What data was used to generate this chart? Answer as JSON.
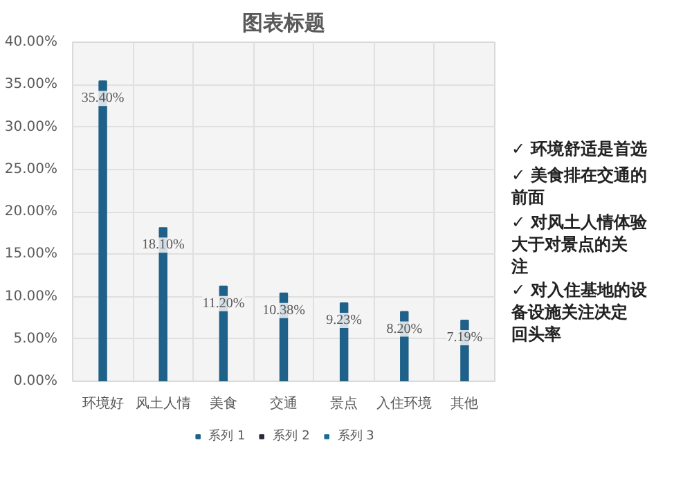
{
  "chart_data": {
    "type": "bar",
    "title": "图表标题",
    "categories": [
      "环境好",
      "风土人情",
      "美食",
      "交通",
      "景点",
      "入住环境",
      "其他"
    ],
    "series": [
      {
        "name": "系列 1",
        "color": "#1f6189",
        "values": [
          35.4,
          18.1,
          11.2,
          10.38,
          9.23,
          8.2,
          7.19
        ],
        "value_labels": [
          "35.40%",
          "18.10%",
          "11.20%",
          "10.38%",
          "9.23%",
          "8.20%",
          "7.19%"
        ]
      },
      {
        "name": "系列 2",
        "color": "#272b3f",
        "values": [
          null,
          null,
          null,
          null,
          null,
          null,
          null
        ]
      },
      {
        "name": "系列 3",
        "color": "#1a6c94",
        "values": [
          null,
          null,
          null,
          null,
          null,
          null,
          null
        ]
      }
    ],
    "ylim": [
      0,
      40
    ],
    "yticks": [
      {
        "value": 0,
        "label": "0.00%"
      },
      {
        "value": 5,
        "label": "5.00%"
      },
      {
        "value": 10,
        "label": "10.00%"
      },
      {
        "value": 15,
        "label": "15.00%"
      },
      {
        "value": 20,
        "label": "20.00%"
      },
      {
        "value": 25,
        "label": "25.00%"
      },
      {
        "value": 30,
        "label": "30.00%"
      },
      {
        "value": 35,
        "label": "35.00%"
      },
      {
        "value": 40,
        "label": "40.00%"
      }
    ],
    "grid": true,
    "legend": "bottom",
    "annotations": [
      "✓ 环境舒适是首选",
      "✓ 美食排在交通的前面",
      "✓ 对风土人情体验大于对景点的关注",
      "✓ 对入住基地的设备设施关注决定回头率"
    ]
  }
}
